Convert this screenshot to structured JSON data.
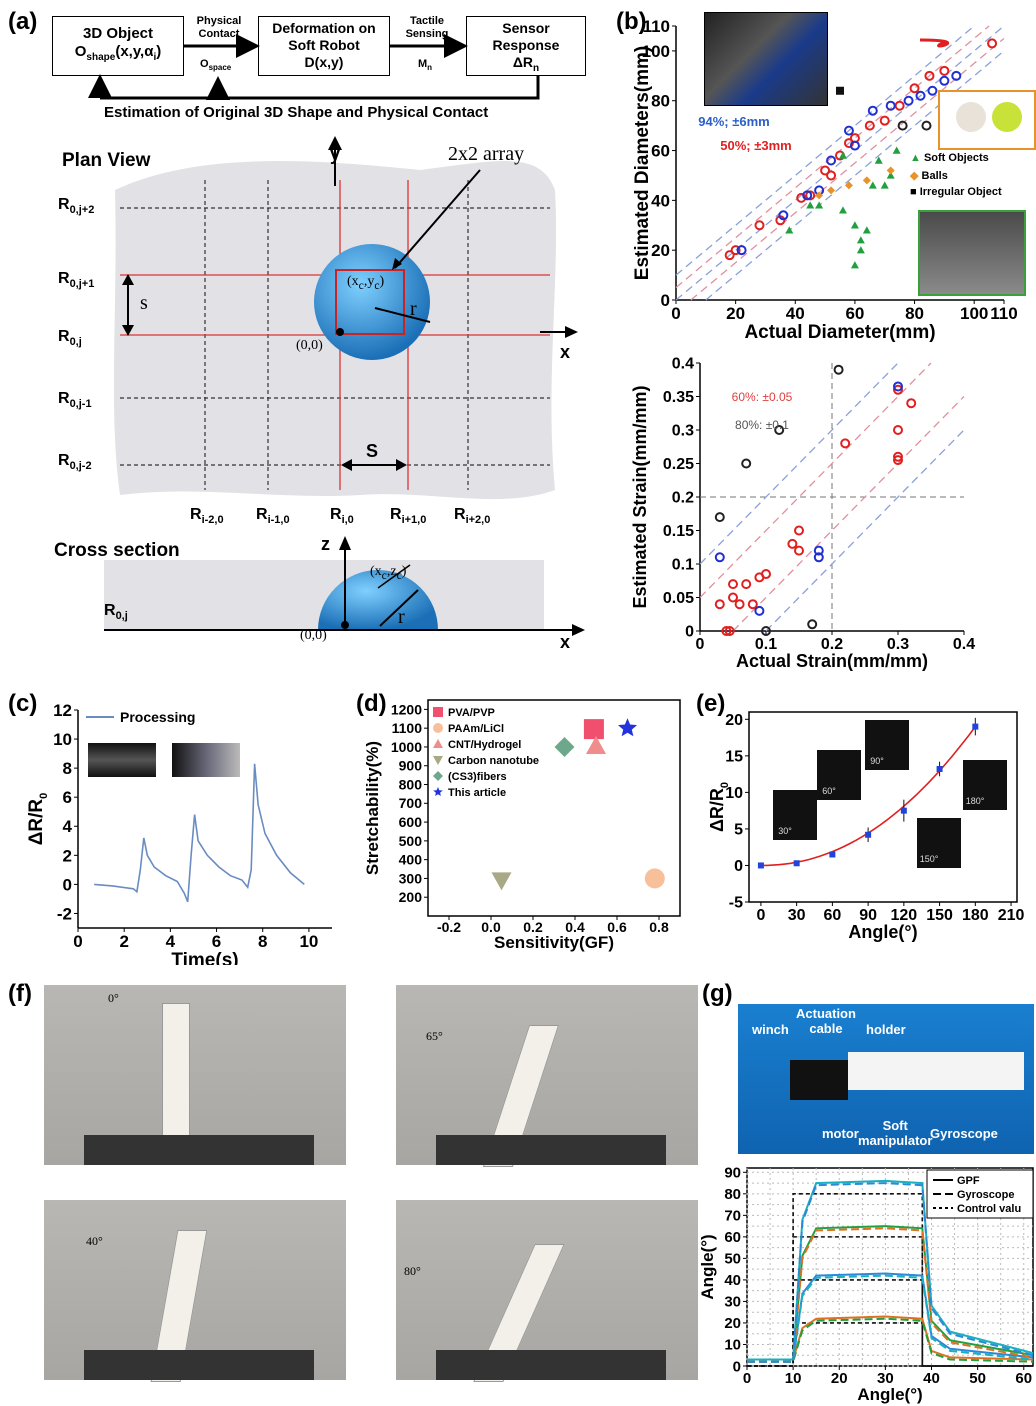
{
  "panel_labels": {
    "a": "(a)",
    "b": "(b)",
    "c": "(c)",
    "d": "(d)",
    "e": "(e)",
    "f": "(f)",
    "g": "(g)"
  },
  "flow": {
    "box1_l1": "3D Object",
    "box1_l2": "O",
    "box1_sub": "shape",
    "box1_tail": "(x,y,α",
    "box1_i": "i",
    "box1_end": ")",
    "arrow1_top": "Physical\nContact",
    "arrow1_bot": "O",
    "arrow1_bot_sub": "space",
    "box2_l1": "Deformation on",
    "box2_l2": "Soft Robot",
    "box2_l3": "D(x,y)",
    "arrow2_top": "Tactile\nSensing",
    "arrow2_bot": "M",
    "arrow2_bot_sub": "n",
    "box3_l1": "Sensor",
    "box3_l2": "Response",
    "box3_l3": "ΔR",
    "box3_sub": "n",
    "feedback": "Estimation of Original 3D Shape and Physical Contact"
  },
  "plan": {
    "title": "Plan View",
    "y_axis": "y",
    "x_axis": "x",
    "array_label": "2x2 array",
    "s_label": "s",
    "S_label": "S",
    "r_label": "r",
    "center_label": "(x",
    "center_sub": "c",
    "center_mid": ",y",
    "center_end": ")",
    "origin": "(0,0)",
    "rows": [
      {
        "main": "R",
        "sub": "0,j+2"
      },
      {
        "main": "R",
        "sub": "0,j+1"
      },
      {
        "main": "R",
        "sub": "0,j"
      },
      {
        "main": "R",
        "sub": "0,j-1"
      },
      {
        "main": "R",
        "sub": "0,j-2"
      }
    ],
    "cols": [
      {
        "main": "R",
        "sub": "i-2,0"
      },
      {
        "main": "R",
        "sub": "i-1,0"
      },
      {
        "main": "R",
        "sub": "i,0"
      },
      {
        "main": "R",
        "sub": "i+1,0"
      },
      {
        "main": "R",
        "sub": "i+2,0"
      }
    ]
  },
  "cross": {
    "title": "Cross section",
    "row_main": "R",
    "row_sub": "0,j",
    "z_axis": "z",
    "x_axis": "x",
    "r_label": "r",
    "origin": "(0,0)",
    "center": "(x",
    "center_sub": "c",
    "center_mid": ",z",
    "center_end": ")"
  },
  "chart_data": [
    {
      "id": "b1",
      "type": "scatter",
      "xlabel": "Actual Diameter(mm)",
      "ylabel": "Estimated Diameters(mm)",
      "xlim": [
        0,
        110
      ],
      "ylim": [
        0,
        110
      ],
      "xticks": [
        "0",
        "20",
        "40",
        "60",
        "80",
        "100",
        "110"
      ],
      "yticks": [
        "0",
        "20",
        "40",
        "60",
        "80",
        "100",
        "110"
      ],
      "annotations": [
        "94%; ±6mm",
        "50%; ±3mm"
      ],
      "legend": [
        "Soft Objects",
        "Balls",
        "Irregular Object"
      ],
      "series": [
        {
          "marker": "red-circle",
          "points": [
            [
              18,
              18
            ],
            [
              20,
              20
            ],
            [
              28,
              30
            ],
            [
              35,
              32
            ],
            [
              42,
              41
            ],
            [
              45,
              42
            ],
            [
              50,
              52
            ],
            [
              52,
              50
            ],
            [
              55,
              58
            ],
            [
              58,
              63
            ],
            [
              60,
              65
            ],
            [
              65,
              70
            ],
            [
              70,
              72
            ],
            [
              75,
              78
            ],
            [
              80,
              85
            ],
            [
              85,
              90
            ],
            [
              90,
              92
            ],
            [
              106,
              103
            ]
          ]
        },
        {
          "marker": "blue-circle",
          "points": [
            [
              22,
              20
            ],
            [
              36,
              34
            ],
            [
              44,
              42
            ],
            [
              48,
              44
            ],
            [
              52,
              56
            ],
            [
              58,
              68
            ],
            [
              60,
              62
            ],
            [
              66,
              76
            ],
            [
              72,
              78
            ],
            [
              78,
              80
            ],
            [
              82,
              82
            ],
            [
              86,
              84
            ],
            [
              90,
              88
            ],
            [
              94,
              90
            ]
          ]
        },
        {
          "marker": "black-circle",
          "points": [
            [
              76,
              70
            ],
            [
              84,
              70
            ]
          ]
        },
        {
          "marker": "green-triangle",
          "points": [
            [
              38,
              28
            ],
            [
              45,
              38
            ],
            [
              48,
              38
            ],
            [
              56,
              36
            ],
            [
              60,
              30
            ],
            [
              60,
              14
            ],
            [
              62,
              20
            ],
            [
              62,
              24
            ],
            [
              64,
              28
            ],
            [
              66,
              46
            ],
            [
              70,
              46
            ],
            [
              72,
              50
            ],
            [
              68,
              56
            ],
            [
              56,
              58
            ],
            [
              74,
              60
            ]
          ]
        },
        {
          "marker": "orange-diamond",
          "points": [
            [
              48,
              42
            ],
            [
              52,
              44
            ],
            [
              58,
              46
            ],
            [
              64,
              48
            ],
            [
              72,
              52
            ]
          ]
        },
        {
          "marker": "black-square",
          "points": [
            [
              55,
              84
            ]
          ]
        }
      ]
    },
    {
      "id": "b2",
      "type": "scatter",
      "xlabel": "Actual Strain(mm/mm)",
      "ylabel": "Estimated Strain(mm/mm)",
      "xlim": [
        0,
        0.4
      ],
      "ylim": [
        0,
        0.4
      ],
      "xticks": [
        "0",
        "0.1",
        "0.2",
        "0.3",
        "0.4"
      ],
      "yticks": [
        "0",
        "0.05",
        "0.1",
        "0.15",
        "0.2",
        "0.25",
        "0.3",
        "0.35",
        "0.4"
      ],
      "annotations": [
        "60%: ±0.05",
        "80%: ±0.1"
      ],
      "series": [
        {
          "marker": "red-circle",
          "points": [
            [
              0.03,
              0.04
            ],
            [
              0.04,
              0.0
            ],
            [
              0.045,
              0.0
            ],
            [
              0.05,
              0.07
            ],
            [
              0.05,
              0.05
            ],
            [
              0.06,
              0.04
            ],
            [
              0.07,
              0.07
            ],
            [
              0.08,
              0.04
            ],
            [
              0.09,
              0.08
            ],
            [
              0.1,
              0.085
            ],
            [
              0.14,
              0.13
            ],
            [
              0.15,
              0.12
            ],
            [
              0.15,
              0.15
            ],
            [
              0.22,
              0.28
            ],
            [
              0.3,
              0.3
            ],
            [
              0.3,
              0.26
            ],
            [
              0.3,
              0.255
            ],
            [
              0.32,
              0.34
            ],
            [
              0.3,
              0.36
            ]
          ]
        },
        {
          "marker": "blue-circle",
          "points": [
            [
              0.03,
              0.11
            ],
            [
              0.09,
              0.03
            ],
            [
              0.18,
              0.12
            ],
            [
              0.18,
              0.11
            ],
            [
              0.3,
              0.365
            ]
          ]
        },
        {
          "marker": "black-circle",
          "points": [
            [
              0.03,
              0.17
            ],
            [
              0.07,
              0.25
            ],
            [
              0.1,
              0.0
            ],
            [
              0.12,
              0.3
            ],
            [
              0.17,
              0.01
            ],
            [
              0.21,
              0.39
            ]
          ]
        }
      ]
    },
    {
      "id": "c",
      "type": "line",
      "xlabel": "Time(s)",
      "ylabel": "ΔR/R",
      "ylabel_sub": "0",
      "xlim": [
        0,
        11
      ],
      "ylim": [
        -3,
        12
      ],
      "xticks": [
        "0",
        "2",
        "4",
        "6",
        "8",
        "10"
      ],
      "yticks": [
        "-2",
        "0",
        "2",
        "4",
        "6",
        "8",
        "10",
        "12"
      ],
      "series": [
        {
          "name": "Processing",
          "points": [
            [
              0.7,
              0
            ],
            [
              1.5,
              -0.1
            ],
            [
              2.4,
              -0.3
            ],
            [
              2.55,
              -0.5
            ],
            [
              2.7,
              1.0
            ],
            [
              2.85,
              3.2
            ],
            [
              3.0,
              2.0
            ],
            [
              3.3,
              1.2
            ],
            [
              3.8,
              0.6
            ],
            [
              4.3,
              0.2
            ],
            [
              4.6,
              -0.6
            ],
            [
              4.75,
              -1.2
            ],
            [
              4.9,
              2.0
            ],
            [
              5.05,
              4.8
            ],
            [
              5.2,
              3.0
            ],
            [
              5.6,
              2.0
            ],
            [
              6.1,
              1.2
            ],
            [
              6.6,
              0.6
            ],
            [
              7.1,
              0.3
            ],
            [
              7.35,
              -0.2
            ],
            [
              7.5,
              1.0
            ],
            [
              7.65,
              8.3
            ],
            [
              7.8,
              5.5
            ],
            [
              8.1,
              3.5
            ],
            [
              8.6,
              2.0
            ],
            [
              9.2,
              0.8
            ],
            [
              9.8,
              0
            ]
          ]
        }
      ]
    },
    {
      "id": "d",
      "type": "scatter",
      "xlabel": "Sensitivity(GF)",
      "ylabel": "Stretchability(%)",
      "xlim": [
        -0.3,
        0.9
      ],
      "ylim": [
        100,
        1250
      ],
      "xticks": [
        "-0.2",
        "0.0",
        "0.2",
        "0.4",
        "0.6",
        "0.8"
      ],
      "yticks": [
        "200",
        "300",
        "400",
        "500",
        "600",
        "700",
        "800",
        "900",
        "1000",
        "1100",
        "1200"
      ],
      "series": [
        {
          "name": "PVA/PVP",
          "color": "#f0506e",
          "marker": "square",
          "points": [
            [
              0.49,
              1095
            ]
          ]
        },
        {
          "name": "PAAm/LiCl",
          "color": "#f7c09b",
          "marker": "circle",
          "points": [
            [
              0.78,
              300
            ]
          ]
        },
        {
          "name": "CNT/Hydrogel",
          "color": "#f08c8c",
          "marker": "triangle",
          "points": [
            [
              0.5,
              1005
            ]
          ]
        },
        {
          "name": "Carbon nanotube",
          "color": "#a9a986",
          "marker": "triangle-down",
          "points": [
            [
              0.05,
              290
            ]
          ]
        },
        {
          "name": "(CS3)fibers",
          "color": "#6ea88c",
          "marker": "diamond",
          "points": [
            [
              0.35,
              1000
            ]
          ]
        },
        {
          "name": "This article",
          "color": "#2233dd",
          "marker": "star",
          "points": [
            [
              0.65,
              1100
            ]
          ]
        }
      ]
    },
    {
      "id": "e",
      "type": "line",
      "xlabel": "Angle(°)",
      "ylabel": "ΔR/R",
      "ylabel_sub": "0",
      "xlim": [
        -10,
        215
      ],
      "ylim": [
        -5,
        21
      ],
      "xticks": [
        "0",
        "30",
        "60",
        "90",
        "120",
        "150",
        "180",
        "210"
      ],
      "yticks": [
        "-5",
        "0",
        "5",
        "10",
        "15",
        "20"
      ],
      "points": [
        [
          0,
          0
        ],
        [
          30,
          0.3
        ],
        [
          60,
          1.5
        ],
        [
          90,
          4.2
        ],
        [
          120,
          7.5
        ],
        [
          150,
          13.2
        ],
        [
          180,
          19
        ]
      ],
      "errors": [
        0.2,
        0.3,
        0.4,
        1.0,
        1.5,
        1.0,
        1.2
      ],
      "inset_labels": [
        "30°",
        "60°",
        "90°",
        "180°",
        "150°"
      ]
    },
    {
      "id": "g",
      "type": "line",
      "xlabel": "Angle(°)",
      "ylabel": "Angle(°)",
      "xlim": [
        0,
        62
      ],
      "ylim": [
        0,
        92
      ],
      "xticks": [
        "0",
        "10",
        "20",
        "30",
        "40",
        "50",
        "60"
      ],
      "yticks": [
        "0",
        "10",
        "20",
        "30",
        "40",
        "50",
        "60",
        "70",
        "80",
        "90"
      ],
      "legend": [
        "GPF",
        "Gyroscope",
        "Control valu"
      ]
    }
  ],
  "f_angles": [
    "0°",
    "65°",
    "40°",
    "80°"
  ],
  "g_photo": {
    "winch": "winch",
    "actuation": "Actuation\ncable",
    "holder": "holder",
    "motor": "motor",
    "soft": "Soft\nmanipulator",
    "gyro": "Gyroscope"
  },
  "c_inset_label": "Processing"
}
